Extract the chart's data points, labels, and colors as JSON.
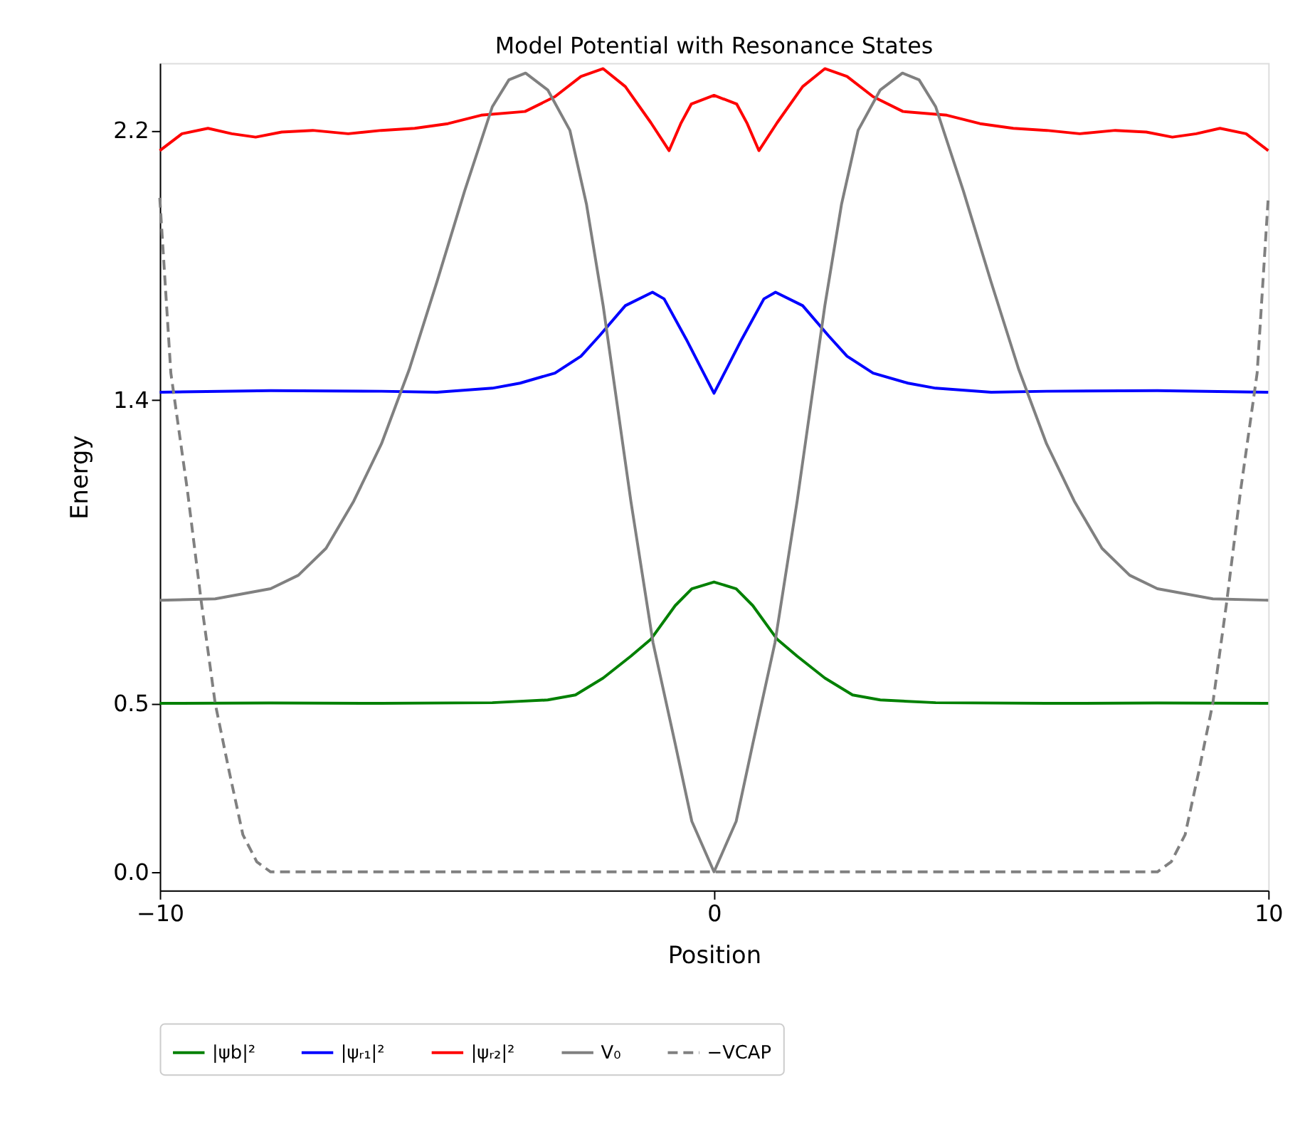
{
  "chart_data": {
    "type": "line",
    "title": "Model Potential with Resonance States",
    "xlabel": "Position",
    "ylabel": "Energy",
    "xlim": [
      -10,
      10
    ],
    "xticks": [
      {
        "value": -10,
        "label": "−10"
      },
      0,
      10
    ],
    "ylim": [
      -0.055,
      2.4
    ],
    "yticks": [
      {
        "value": 0,
        "label": "0.0"
      },
      0.5,
      1.4,
      2.2
    ],
    "grid": false,
    "legend": "bottom",
    "marker": "none",
    "series": [
      {
        "name": "|ψb|²",
        "color": "#008000",
        "line_style": "solid",
        "x": [
          -10,
          -8,
          -6,
          -4,
          -3,
          -2.5,
          -2,
          -1.5,
          -1.14,
          -0.7,
          -0.4,
          0,
          0.4,
          0.7,
          1.14,
          1.5,
          2,
          2.5,
          3,
          4,
          6,
          8,
          10
        ],
        "values": [
          0.5,
          0.501,
          0.5,
          0.502,
          0.51,
          0.525,
          0.575,
          0.64,
          0.69,
          0.79,
          0.84,
          0.86,
          0.84,
          0.79,
          0.69,
          0.64,
          0.575,
          0.525,
          0.51,
          0.502,
          0.5,
          0.501,
          0.5
        ]
      },
      {
        "name": "|ψᵣ₁|²",
        "color": "#0000ff",
        "line_style": "solid",
        "x": [
          -10,
          -8,
          -6,
          -5,
          -4,
          -3.5,
          -2.87,
          -2.4,
          -2.07,
          -1.6,
          -1.11,
          -0.9,
          -0.5,
          -0.25,
          0,
          0.25,
          0.5,
          0.9,
          1.11,
          1.6,
          2.07,
          2.4,
          2.87,
          3.5,
          4,
          5,
          6,
          8,
          10
        ],
        "values": [
          1.423,
          1.428,
          1.426,
          1.423,
          1.435,
          1.45,
          1.48,
          1.53,
          1.59,
          1.68,
          1.72,
          1.7,
          1.58,
          1.5,
          1.42,
          1.5,
          1.58,
          1.7,
          1.72,
          1.68,
          1.59,
          1.53,
          1.48,
          1.45,
          1.435,
          1.423,
          1.426,
          1.428,
          1.423
        ]
      },
      {
        "name": "|ψᵣ₂|²",
        "color": "#ff0000",
        "line_style": "solid",
        "x": [
          -10,
          -9.6,
          -9.13,
          -8.7,
          -8.27,
          -7.8,
          -7.24,
          -6.6,
          -6,
          -5.4,
          -4.8,
          -4.2,
          -3.41,
          -2.87,
          -2.4,
          -2,
          -1.6,
          -1.14,
          -0.81,
          -0.6,
          -0.41,
          0,
          0.41,
          0.6,
          0.81,
          1.14,
          1.6,
          2,
          2.4,
          2.87,
          3.41,
          4.2,
          4.8,
          5.4,
          6,
          6.6,
          7.24,
          7.8,
          8.27,
          8.7,
          9.13,
          9.6,
          10
        ],
        "values": [
          2.14,
          2.19,
          2.206,
          2.19,
          2.18,
          2.195,
          2.2,
          2.19,
          2.2,
          2.206,
          2.22,
          2.245,
          2.256,
          2.3,
          2.36,
          2.383,
          2.33,
          2.223,
          2.14,
          2.22,
          2.278,
          2.304,
          2.278,
          2.22,
          2.14,
          2.223,
          2.33,
          2.383,
          2.36,
          2.3,
          2.256,
          2.245,
          2.22,
          2.206,
          2.2,
          2.19,
          2.2,
          2.195,
          2.18,
          2.19,
          2.206,
          2.19,
          2.14
        ]
      },
      {
        "name": "V₀",
        "color": "#808080",
        "line_style": "solid",
        "x": [
          -10,
          -9,
          -8,
          -7.5,
          -7,
          -6.5,
          -6,
          -5.5,
          -5,
          -4.5,
          -4,
          -3.7,
          -3.4,
          -3,
          -2.6,
          -2.3,
          -2,
          -1.5,
          -1.1,
          -0.7,
          -0.4,
          0,
          0.4,
          0.7,
          1.1,
          1.5,
          2,
          2.3,
          2.6,
          3,
          3.4,
          3.7,
          4,
          4.5,
          5,
          5.5,
          6,
          6.5,
          7,
          7.5,
          8,
          9,
          10
        ],
        "values": [
          0.806,
          0.81,
          0.84,
          0.88,
          0.96,
          1.1,
          1.27,
          1.49,
          1.75,
          2.02,
          2.27,
          2.35,
          2.37,
          2.32,
          2.2,
          1.98,
          1.68,
          1.1,
          0.68,
          0.38,
          0.15,
          0,
          0.15,
          0.38,
          0.68,
          1.1,
          1.68,
          1.98,
          2.2,
          2.32,
          2.37,
          2.35,
          2.27,
          2.02,
          1.75,
          1.49,
          1.27,
          1.1,
          0.96,
          0.88,
          0.84,
          0.81,
          0.806
        ]
      },
      {
        "name": "−VCAP",
        "color": "#808080",
        "line_style": "dashed",
        "x": [
          -10,
          -9.8,
          -9.5,
          -9.25,
          -9,
          -8.75,
          -8.5,
          -8.25,
          -8,
          8,
          8.25,
          8.5,
          8.75,
          9,
          9.25,
          9.5,
          9.8,
          10
        ],
        "values": [
          2.0,
          1.48,
          1.13,
          0.8,
          0.5,
          0.3,
          0.11,
          0.03,
          0,
          0,
          0.03,
          0.11,
          0.3,
          0.5,
          0.8,
          1.13,
          1.48,
          2.0
        ]
      }
    ]
  }
}
